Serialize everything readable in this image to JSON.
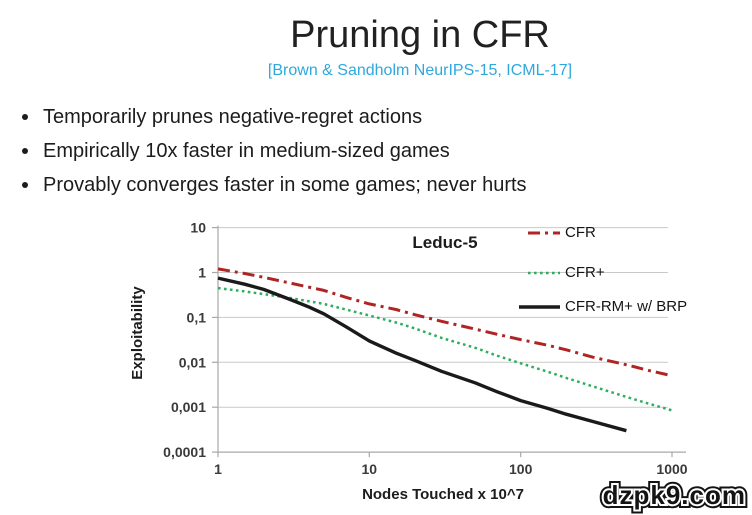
{
  "slide": {
    "title": "Pruning in CFR",
    "citation": "[Brown & Sandholm NeurIPS-15, ICML-17]",
    "bullets": [
      "Temporarily prunes negative-regret actions",
      "Empirically 10x faster in medium-sized games",
      "Provably converges faster in some games; never hurts"
    ]
  },
  "watermark": "dzpk9.com",
  "chart_data": {
    "type": "line",
    "title": "Leduc-5",
    "xlabel": "Nodes Touched x 10^7",
    "ylabel": "Exploitability",
    "x_scale": "log",
    "y_scale": "log",
    "xlim": [
      1,
      1000
    ],
    "ylim": [
      0.0001,
      10
    ],
    "x_ticks": [
      "1",
      "10",
      "100",
      "1000"
    ],
    "x_tick_values": [
      1,
      10,
      100,
      1000
    ],
    "y_ticks": [
      "10",
      "1",
      "0,1",
      "0,01",
      "0,001",
      "0,0001"
    ],
    "y_tick_values": [
      10,
      1,
      0.1,
      0.01,
      0.001,
      0.0001
    ],
    "grid": "horizontal",
    "legend_position": "top-right",
    "series": [
      {
        "name": "CFR",
        "color": "#b02423",
        "style": "dash-dot",
        "points": [
          [
            1,
            1.2
          ],
          [
            1.5,
            0.95
          ],
          [
            2,
            0.78
          ],
          [
            3,
            0.58
          ],
          [
            5,
            0.4
          ],
          [
            7,
            0.28
          ],
          [
            10,
            0.2
          ],
          [
            15,
            0.15
          ],
          [
            20,
            0.115
          ],
          [
            30,
            0.082
          ],
          [
            50,
            0.055
          ],
          [
            70,
            0.042
          ],
          [
            100,
            0.032
          ],
          [
            150,
            0.024
          ],
          [
            200,
            0.019
          ],
          [
            300,
            0.013
          ],
          [
            500,
            0.0088
          ],
          [
            700,
            0.0066
          ],
          [
            1000,
            0.005
          ]
        ]
      },
      {
        "name": "CFR+",
        "color": "#2eac5f",
        "style": "dotted",
        "points": [
          [
            1,
            0.45
          ],
          [
            1.5,
            0.38
          ],
          [
            2,
            0.33
          ],
          [
            3,
            0.27
          ],
          [
            5,
            0.2
          ],
          [
            7,
            0.15
          ],
          [
            10,
            0.11
          ],
          [
            15,
            0.077
          ],
          [
            20,
            0.057
          ],
          [
            30,
            0.035
          ],
          [
            50,
            0.021
          ],
          [
            70,
            0.014
          ],
          [
            100,
            0.0095
          ],
          [
            150,
            0.0062
          ],
          [
            200,
            0.0045
          ],
          [
            300,
            0.0029
          ],
          [
            500,
            0.0017
          ],
          [
            700,
            0.0012
          ],
          [
            1000,
            0.00085
          ]
        ]
      },
      {
        "name": "CFR-RM+ w/ BRP",
        "color": "#1a1a1a",
        "style": "solid",
        "points": [
          [
            1,
            0.75
          ],
          [
            1.5,
            0.55
          ],
          [
            2,
            0.42
          ],
          [
            3,
            0.25
          ],
          [
            4,
            0.17
          ],
          [
            5,
            0.12
          ],
          [
            7,
            0.062
          ],
          [
            10,
            0.03
          ],
          [
            15,
            0.016
          ],
          [
            20,
            0.011
          ],
          [
            30,
            0.0063
          ],
          [
            50,
            0.0035
          ],
          [
            70,
            0.0022
          ],
          [
            100,
            0.0014
          ],
          [
            150,
            0.00095
          ],
          [
            200,
            0.0007
          ],
          [
            300,
            0.00048
          ],
          [
            500,
            0.0003
          ]
        ]
      }
    ]
  }
}
